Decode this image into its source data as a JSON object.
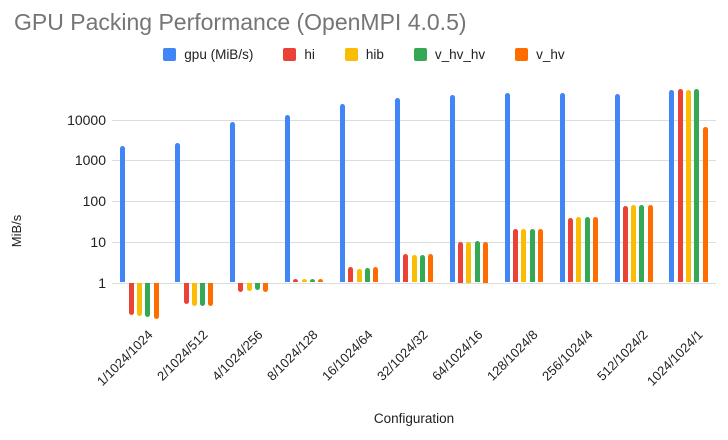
{
  "chart_data": {
    "type": "bar",
    "title": "GPU Packing Performance (OpenMPI 4.0.5)",
    "xlabel": "Configuration",
    "ylabel": "MiB/s",
    "y_scale": "log",
    "y_ticks": [
      1,
      10,
      100,
      1000,
      10000
    ],
    "ylim": [
      0.12,
      60000
    ],
    "grid": true,
    "legend_position": "top",
    "background_color": "#ffffff",
    "title_color": "#757575",
    "gridline_color": "#dadce0",
    "categories": [
      "1/1024/1024",
      "2/1024/512",
      "4/1024/256",
      "8/1024/128",
      "16/1024/64",
      "32/1024/32",
      "64/1024/16",
      "128/1024/8",
      "256/1024/4",
      "512/1024/2",
      "1024/1024/1"
    ],
    "series": [
      {
        "name": "gpu (MiB/s)",
        "color": "#4285F4",
        "values": [
          2200,
          2600,
          8500,
          13000,
          23500,
          34000,
          41000,
          44000,
          45000,
          43000,
          52000
        ]
      },
      {
        "name": "hi",
        "color": "#EA4335",
        "values": [
          0.16,
          0.29,
          0.6,
          1.2,
          2.4,
          5.0,
          10,
          20,
          38,
          77,
          55000
        ]
      },
      {
        "name": "hib",
        "color": "#FBBC04",
        "values": [
          0.15,
          0.27,
          0.62,
          1.2,
          2.2,
          4.7,
          10,
          20,
          41,
          80,
          53000
        ]
      },
      {
        "name": "v_hv_hv",
        "color": "#34A853",
        "values": [
          0.14,
          0.26,
          0.64,
          1.2,
          2.3,
          4.8,
          10.5,
          20,
          41,
          78,
          55000
        ]
      },
      {
        "name": "v_hv",
        "color": "#FF6D01",
        "values": [
          0.13,
          0.26,
          0.6,
          1.2,
          2.4,
          5.0,
          10,
          21,
          40,
          80,
          6500
        ]
      }
    ]
  }
}
